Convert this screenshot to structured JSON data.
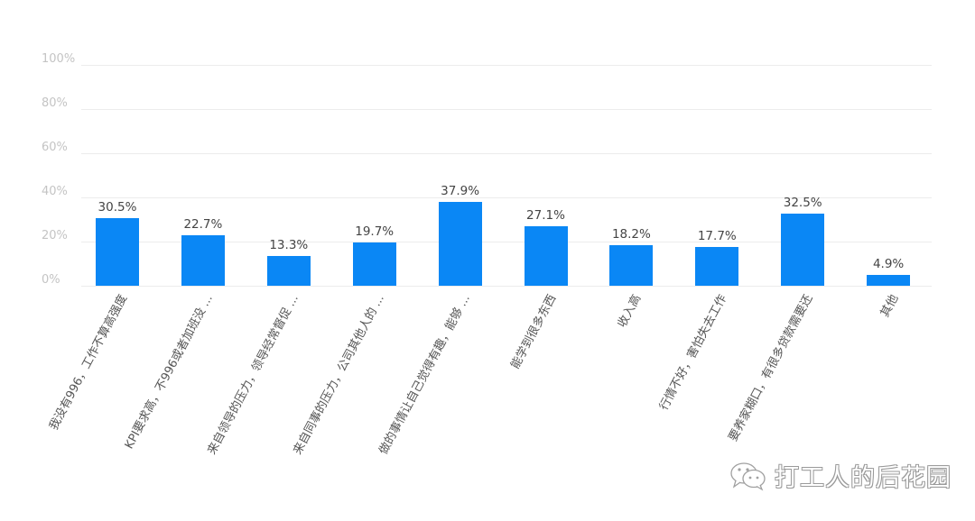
{
  "chart_data": {
    "type": "bar",
    "title": "",
    "xlabel": "",
    "ylabel": "",
    "ylim": [
      0,
      100
    ],
    "yticks": [
      "0%",
      "20%",
      "40%",
      "60%",
      "80%",
      "100%"
    ],
    "grid": true,
    "legend": null,
    "bar_color": "#0a87f5",
    "categories": [
      "我没有996，工作不算高强度",
      "KPI要求高，不996或者加班没 ...",
      "来自领导的压力，领导经常督促 ...",
      "来自同事的压力，公司其他人的 ...",
      "做的事情让自己觉得有趣，能够 ...",
      "能学到很多东西",
      "收入高",
      "行情不好，害怕失去工作",
      "要养家糊口，有很多贷款需要还",
      "其他"
    ],
    "values": [
      30.5,
      22.7,
      13.3,
      19.7,
      37.9,
      27.1,
      18.2,
      17.7,
      32.5,
      4.9
    ],
    "value_labels": [
      "30.5%",
      "22.7%",
      "13.3%",
      "19.7%",
      "37.9%",
      "27.1%",
      "18.2%",
      "17.7%",
      "32.5%",
      "4.9%"
    ]
  },
  "watermark": {
    "icon": "wechat-icon",
    "text": "打工人的后花园"
  }
}
